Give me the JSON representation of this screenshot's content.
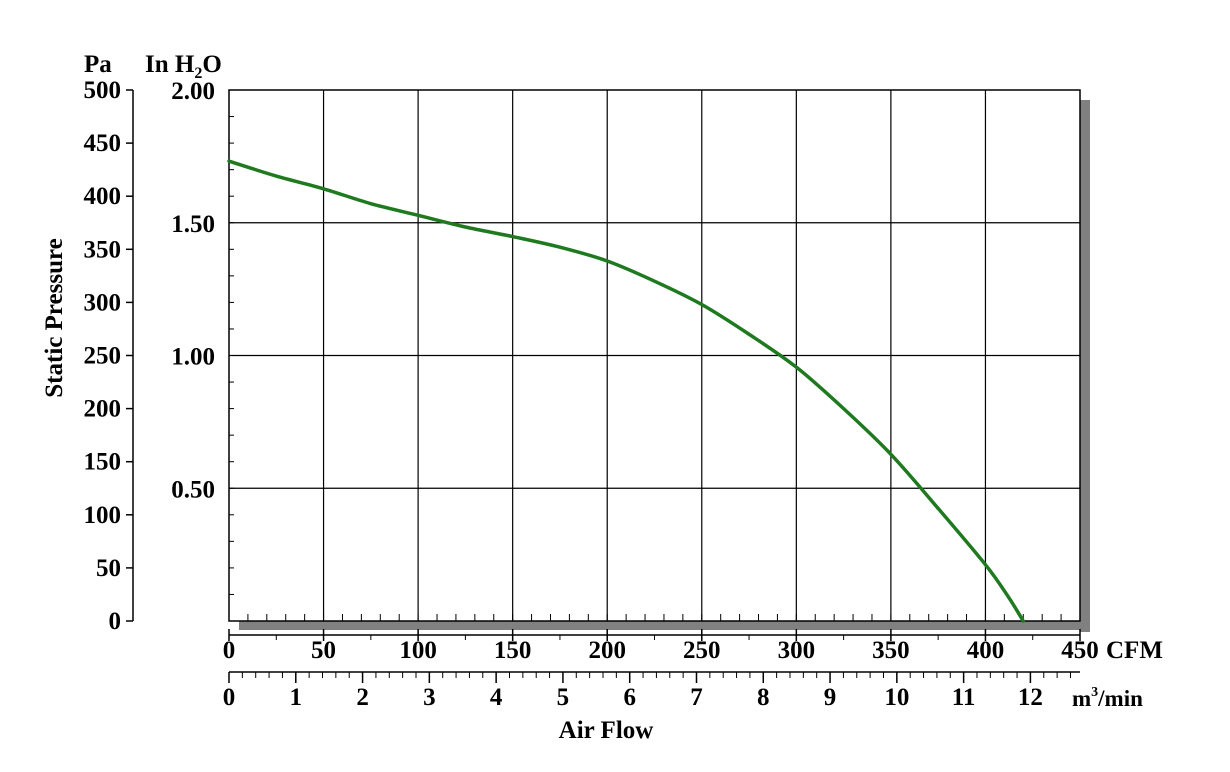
{
  "chart_data": {
    "type": "line",
    "title": "",
    "ylabel": "Static Pressure",
    "xlabel": "Air Flow",
    "y_units": {
      "left": "Pa",
      "right_prefix": "In H",
      "right_sub": "2",
      "right_suffix": "O"
    },
    "x_units": {
      "cfm": "CFM",
      "m3_prefix": "m",
      "m3_sup": "3",
      "m3_suffix": "/min"
    },
    "xlim_cfm": [
      0,
      450
    ],
    "ylim_pa": [
      0,
      500
    ],
    "ylim_inh2o": [
      0,
      2.0
    ],
    "grid": true,
    "x_ticks_cfm": [
      0,
      50,
      100,
      150,
      200,
      250,
      300,
      350,
      400,
      450
    ],
    "x_tick_labels_cfm": [
      "0",
      "50",
      "100",
      "150",
      "200",
      "250",
      "300",
      "350",
      "400",
      "450"
    ],
    "x_ticks_m3min": [
      0,
      1,
      2,
      3,
      4,
      5,
      6,
      7,
      8,
      9,
      10,
      11,
      12
    ],
    "x_tick_labels_m3min": [
      "0",
      "1",
      "2",
      "3",
      "4",
      "5",
      "6",
      "7",
      "8",
      "9",
      "10",
      "11",
      "12"
    ],
    "y_ticks_pa": [
      0,
      50,
      100,
      150,
      200,
      250,
      300,
      350,
      400,
      450,
      500
    ],
    "y_tick_labels_pa": [
      "0",
      "50",
      "100",
      "150",
      "200",
      "250",
      "300",
      "350",
      "400",
      "450",
      "500"
    ],
    "y_ticks_inh2o": [
      0.5,
      1.0,
      1.5,
      2.0
    ],
    "y_tick_labels_inh2o": [
      "0.50",
      "1.00",
      "1.50",
      "2.00"
    ],
    "series": [
      {
        "name": "",
        "color": "#1f7a1f",
        "x": [
          0,
          25,
          50,
          75,
          100,
          125,
          150,
          175,
          200,
          225,
          250,
          275,
          300,
          325,
          350,
          375,
          400,
          412,
          420
        ],
        "y": [
          433,
          419,
          407,
          393,
          382,
          371,
          362,
          352,
          339,
          320,
          298,
          270,
          239,
          200,
          157,
          106,
          53,
          23,
          0
        ]
      }
    ]
  }
}
